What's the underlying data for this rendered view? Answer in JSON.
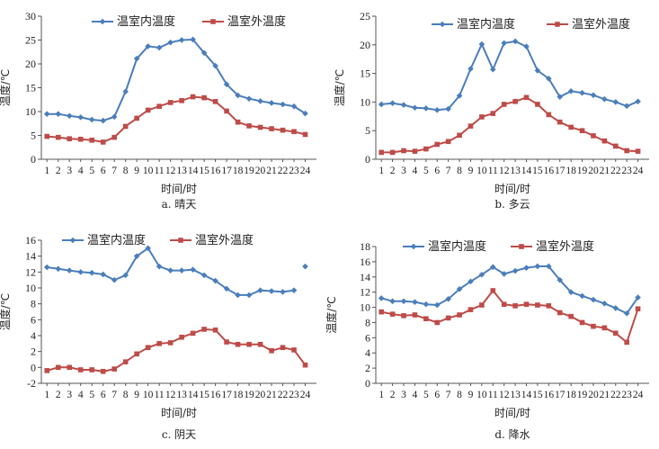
{
  "colors": {
    "indoor": "#4a7ebb",
    "outdoor": "#be4b48",
    "axis": "#555555"
  },
  "chart_data": [
    {
      "type": "line",
      "caption": "a. 晴天",
      "xlabel": "时间/时",
      "ylabel": "温度/℃",
      "x": [
        1,
        2,
        3,
        4,
        5,
        6,
        7,
        8,
        9,
        10,
        11,
        12,
        13,
        14,
        15,
        16,
        17,
        18,
        19,
        20,
        21,
        22,
        23,
        24
      ],
      "ylim": [
        0,
        30
      ],
      "yticks": [
        0,
        5,
        10,
        15,
        20,
        25,
        30
      ],
      "series": [
        {
          "name": "温室内温度",
          "values": [
            9.5,
            9.5,
            9.1,
            8.8,
            8.3,
            8.1,
            8.9,
            14.2,
            21.1,
            23.7,
            23.4,
            24.5,
            25.0,
            25.1,
            22.3,
            19.6,
            15.7,
            13.4,
            12.7,
            12.2,
            11.8,
            11.5,
            11.1,
            9.6
          ]
        },
        {
          "name": "温室外温度",
          "values": [
            4.8,
            4.6,
            4.3,
            4.2,
            4.0,
            3.6,
            4.6,
            6.9,
            8.6,
            10.3,
            11.1,
            11.9,
            12.3,
            13.1,
            12.9,
            12.1,
            10.1,
            7.8,
            7.0,
            6.7,
            6.4,
            6.1,
            5.8,
            5.2
          ]
        }
      ]
    },
    {
      "type": "line",
      "caption": "b. 多云",
      "xlabel": "时间/时",
      "ylabel": "温度/℃",
      "x": [
        1,
        2,
        3,
        4,
        5,
        6,
        7,
        8,
        9,
        10,
        11,
        12,
        13,
        14,
        15,
        16,
        17,
        18,
        19,
        20,
        21,
        22,
        23,
        24
      ],
      "ylim": [
        0,
        25
      ],
      "yticks": [
        0,
        5,
        10,
        15,
        20,
        25
      ],
      "series": [
        {
          "name": "温室内温度",
          "values": [
            9.6,
            9.8,
            9.5,
            9.0,
            8.9,
            8.6,
            8.8,
            11.1,
            15.8,
            20.1,
            15.7,
            20.3,
            20.6,
            19.7,
            15.5,
            14.1,
            10.9,
            11.9,
            11.6,
            11.2,
            10.5,
            10.0,
            9.3,
            10.1
          ]
        },
        {
          "name": "温室外温度",
          "values": [
            1.2,
            1.2,
            1.5,
            1.4,
            1.8,
            2.6,
            3.1,
            4.2,
            5.8,
            7.4,
            8.0,
            9.6,
            10.1,
            10.8,
            9.6,
            7.8,
            6.5,
            5.6,
            5.0,
            4.1,
            3.2,
            2.3,
            1.5,
            1.4
          ]
        }
      ]
    },
    {
      "type": "line",
      "caption": "c. 阴天",
      "xlabel": "时间/时",
      "ylabel": "温度/℃",
      "x": [
        1,
        2,
        3,
        4,
        5,
        6,
        7,
        8,
        9,
        10,
        11,
        12,
        13,
        14,
        15,
        16,
        17,
        18,
        19,
        20,
        21,
        22,
        23,
        24
      ],
      "ylim": [
        -2,
        16
      ],
      "yticks": [
        -2,
        0,
        2,
        4,
        6,
        8,
        10,
        12,
        14,
        16
      ],
      "series": [
        {
          "name": "温室内温度",
          "values": [
            12.6,
            12.4,
            12.2,
            12.0,
            11.9,
            11.7,
            11.0,
            11.6,
            14.0,
            15.0,
            12.7,
            12.2,
            12.2,
            12.3,
            11.6,
            10.9,
            9.9,
            9.1,
            9.1,
            9.7,
            9.6,
            9.5,
            9.7,
            12.7
          ]
        },
        {
          "name": "温室外温度",
          "values": [
            -0.4,
            0.0,
            0.0,
            -0.3,
            -0.3,
            -0.5,
            -0.2,
            0.7,
            1.7,
            2.5,
            3.0,
            3.1,
            3.8,
            4.3,
            4.8,
            4.7,
            3.2,
            2.9,
            2.9,
            2.9,
            2.1,
            2.5,
            2.2,
            0.3
          ]
        }
      ]
    },
    {
      "type": "line",
      "caption": "d. 降水",
      "xlabel": "时间/时",
      "ylabel": "温度/℃",
      "x": [
        1,
        2,
        3,
        4,
        5,
        6,
        7,
        8,
        9,
        10,
        11,
        12,
        13,
        14,
        15,
        16,
        17,
        18,
        19,
        20,
        21,
        22,
        23,
        24
      ],
      "ylim": [
        0,
        18
      ],
      "yticks": [
        0,
        2,
        4,
        6,
        8,
        10,
        12,
        14,
        16,
        18
      ],
      "series": [
        {
          "name": "温室内温度",
          "values": [
            11.2,
            10.8,
            10.8,
            10.7,
            10.4,
            10.3,
            11.1,
            12.4,
            13.4,
            14.3,
            15.3,
            14.4,
            14.8,
            15.2,
            15.4,
            15.4,
            13.6,
            12.0,
            11.5,
            11.0,
            10.5,
            9.9,
            9.2,
            11.3
          ]
        },
        {
          "name": "温室外温度",
          "values": [
            9.4,
            9.1,
            8.9,
            9.0,
            8.5,
            8.0,
            8.6,
            9.0,
            9.7,
            10.3,
            12.2,
            10.4,
            10.2,
            10.4,
            10.3,
            10.2,
            9.3,
            8.8,
            8.0,
            7.5,
            7.3,
            6.6,
            5.4,
            9.8
          ]
        }
      ]
    }
  ]
}
